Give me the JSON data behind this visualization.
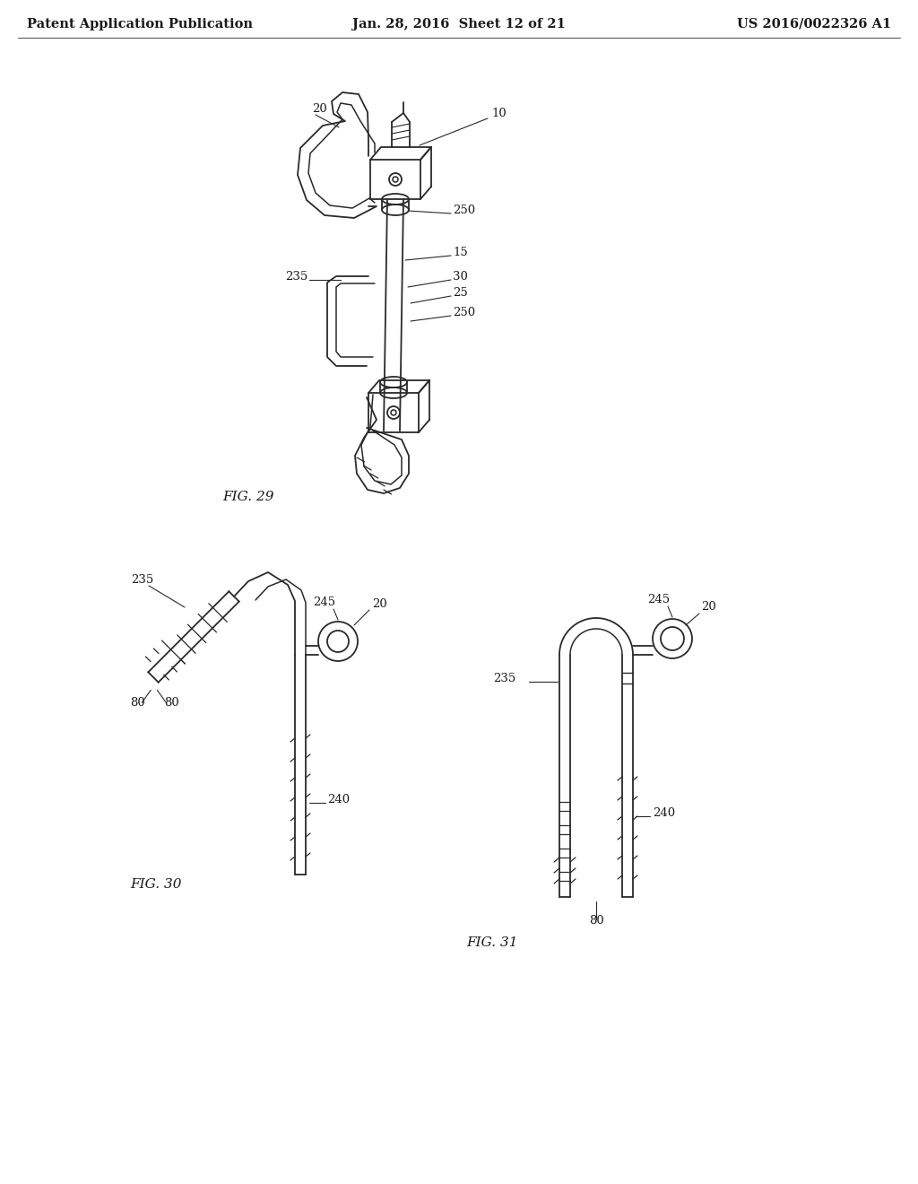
{
  "background_color": "#ffffff",
  "header_left": "Patent Application Publication",
  "header_mid": "Jan. 28, 2016  Sheet 12 of 21",
  "header_right": "US 2016/0022326 A1",
  "fig29_label": "FIG. 29",
  "fig30_label": "FIG. 30",
  "fig31_label": "FIG. 31",
  "line_color": "#2a2a2a",
  "text_color": "#1a1a1a",
  "header_font_size": 10.5,
  "label_font_size": 9.5,
  "fig_label_font_size": 11
}
